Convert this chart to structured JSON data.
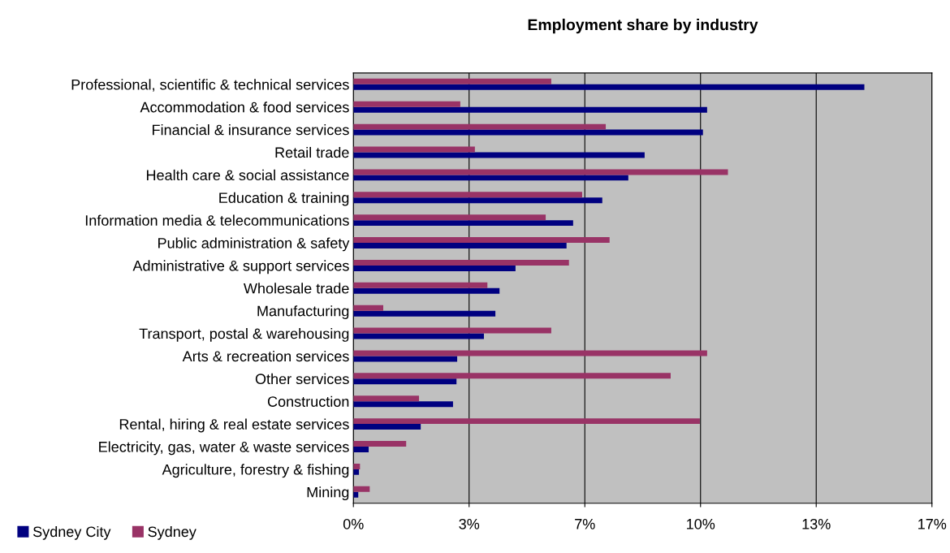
{
  "chart_data": {
    "type": "bar",
    "orientation": "horizontal",
    "title": "Employment share by industry",
    "categories": [
      "Professional, scientific & technical services",
      "Accommodation & food services",
      "Financial & insurance services",
      "Retail trade",
      "Health care & social assistance",
      "Education & training",
      "Information media & telecommunications",
      "Public administration & safety",
      "Administrative & support services",
      "Wholesale trade",
      "Manufacturing",
      "Transport, postal & warehousing",
      "Arts & recreation services",
      "Other services",
      "Construction",
      "Rental, hiring & real estate services",
      "Electricity, gas, water & waste services",
      "Agriculture, forestry & fishing",
      "Mining"
    ],
    "series": [
      {
        "name": "Sydney City",
        "color": "#000080",
        "values": [
          14.72,
          10.19,
          10.07,
          8.39,
          7.92,
          7.17,
          6.33,
          6.14,
          4.67,
          4.21,
          4.09,
          3.76,
          2.99,
          2.97,
          2.87,
          1.94,
          0.44,
          0.16,
          0.14
        ]
      },
      {
        "name": "Sydney",
        "color": "#993366",
        "values": [
          5.7,
          3.08,
          7.27,
          3.5,
          10.79,
          6.59,
          5.54,
          7.38,
          6.21,
          3.86,
          0.86,
          5.7,
          10.19,
          9.14,
          1.89,
          9.98,
          1.52,
          0.19,
          0.47
        ]
      }
    ],
    "xlim": [
      0,
      16.667
    ],
    "xticks": [
      {
        "value": 0,
        "label": "0%"
      },
      {
        "value": 3.333,
        "label": "3%"
      },
      {
        "value": 6.667,
        "label": "7%"
      },
      {
        "value": 10,
        "label": "10%"
      },
      {
        "value": 13.333,
        "label": "13%"
      },
      {
        "value": 16.667,
        "label": "17%"
      }
    ],
    "grid": "x",
    "legend": "bottom left"
  }
}
